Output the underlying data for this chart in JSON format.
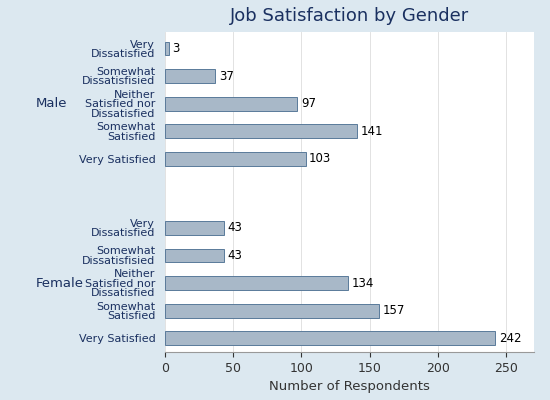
{
  "title": "Job Satisfaction by Gender",
  "xlabel": "Number of Respondents",
  "background_color": "#dce8f0",
  "plot_background_color": "#ffffff",
  "bar_color": "#a8b8c8",
  "bar_edge_color": "#5a7a9a",
  "groups": [
    {
      "label": "Male",
      "categories": [
        "Very\nDissatisfied",
        "Somewhat\nDissatisfisied",
        "Neither\nSatisfied nor\nDissatisfied",
        "Somewhat\nSatisfied",
        "Very Satisfied"
      ],
      "values": [
        3,
        37,
        97,
        141,
        103
      ]
    },
    {
      "label": "Female",
      "categories": [
        "Very\nDissatisfied",
        "Somewhat\nDissatisfisied",
        "Neither\nSatisfied nor\nDissatisfied",
        "Somewhat\nSatisfied",
        "Very Satisfied"
      ],
      "values": [
        43,
        43,
        134,
        157,
        242
      ]
    }
  ],
  "xlim": [
    0,
    270
  ],
  "xticks": [
    0,
    50,
    100,
    150,
    200,
    250
  ],
  "title_fontsize": 13,
  "label_fontsize": 8,
  "tick_fontsize": 9,
  "xlabel_fontsize": 9.5,
  "group_label_fontsize": 9.5,
  "value_label_fontsize": 8.5,
  "bar_height": 0.5
}
